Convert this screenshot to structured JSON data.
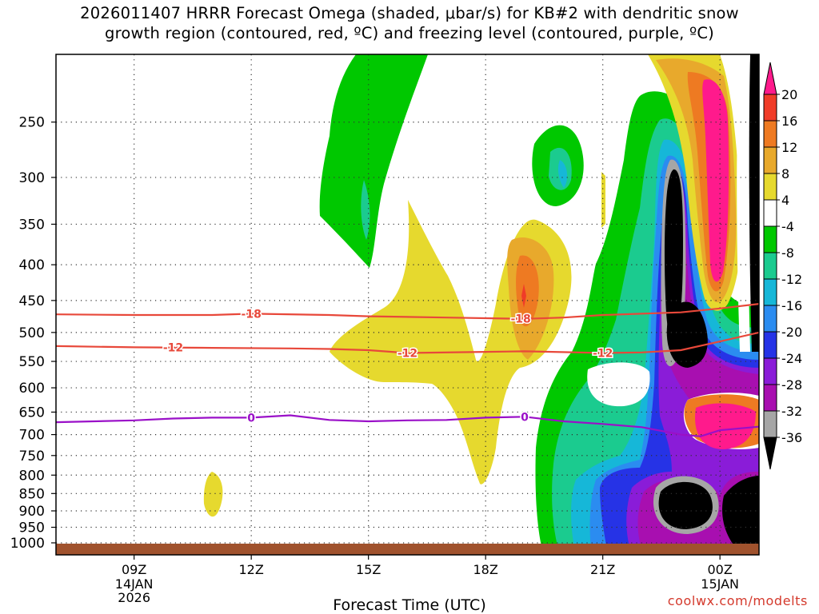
{
  "title_lines": [
    "2026011407 HRRR Forecast Omega (shaded, μbar/s) for KB#2 with dendritic snow",
    "growth region (contoured, red, ºC) and freezing level (contoured, purple, ºC)"
  ],
  "credit": "coolwx.com/modelts",
  "chart_data": {
    "type": "heatmap",
    "xlabel": "Forecast Time (UTC)",
    "x_ticks": [
      {
        "hour": 9,
        "label": "09Z",
        "sub": [
          "14JAN",
          "2026"
        ]
      },
      {
        "hour": 12,
        "label": "12Z",
        "sub": []
      },
      {
        "hour": 15,
        "label": "15Z",
        "sub": []
      },
      {
        "hour": 18,
        "label": "18Z",
        "sub": []
      },
      {
        "hour": 21,
        "label": "21Z",
        "sub": []
      },
      {
        "hour": 24,
        "label": "00Z",
        "sub": [
          "15JAN"
        ]
      }
    ],
    "xlim_hours": [
      7,
      25
    ],
    "y_levels_hpa": [
      250,
      300,
      350,
      400,
      450,
      500,
      550,
      600,
      650,
      700,
      750,
      800,
      850,
      900,
      950,
      1000
    ],
    "ylim_hpa": [
      200,
      1000
    ],
    "colorbar": {
      "labels": [
        "20",
        "16",
        "12",
        "8",
        "4",
        "-4",
        "-8",
        "-12",
        "-16",
        "-20",
        "-24",
        "-28",
        "-32",
        "-36"
      ],
      "colors": [
        "#ff1a8c",
        "#f03c28",
        "#ee7a22",
        "#e8a92c",
        "#e6d92e",
        "#ffffff",
        "#00c800",
        "#1bcb8f",
        "#16b7d8",
        "#2b8cf0",
        "#2633e6",
        "#8a1cd8",
        "#a80fb0",
        "#a6a6a6",
        "#000000"
      ]
    },
    "isotherms": [
      {
        "value": -18,
        "color": "#e8483a",
        "points": [
          [
            7,
            471
          ],
          [
            9,
            472
          ],
          [
            11,
            472
          ],
          [
            12,
            470
          ],
          [
            14,
            472
          ],
          [
            15,
            474
          ],
          [
            17,
            476
          ],
          [
            19,
            478
          ],
          [
            20,
            476
          ],
          [
            21,
            472
          ],
          [
            23,
            468
          ],
          [
            24,
            462
          ],
          [
            25,
            455
          ]
        ],
        "labels": [
          [
            12,
            "-18"
          ],
          [
            18.9,
            "-18"
          ]
        ]
      },
      {
        "value": -12,
        "color": "#e8483a",
        "points": [
          [
            7,
            523
          ],
          [
            9,
            525
          ],
          [
            11,
            526
          ],
          [
            13,
            527
          ],
          [
            14,
            528
          ],
          [
            15,
            530
          ],
          [
            16,
            535
          ],
          [
            18,
            533
          ],
          [
            19,
            532
          ],
          [
            21,
            535
          ],
          [
            22,
            534
          ],
          [
            23,
            530
          ],
          [
            24,
            515
          ],
          [
            25,
            500
          ]
        ],
        "labels": [
          [
            10,
            "-12"
          ],
          [
            16,
            "-12"
          ],
          [
            21,
            "-12"
          ]
        ]
      },
      {
        "value": 0,
        "color": "#9a10c8",
        "points": [
          [
            7,
            672
          ],
          [
            9,
            668
          ],
          [
            10,
            664
          ],
          [
            11,
            662
          ],
          [
            12,
            662
          ],
          [
            13,
            657
          ],
          [
            14,
            667
          ],
          [
            15,
            670
          ],
          [
            16,
            668
          ],
          [
            17,
            667
          ],
          [
            18,
            662
          ],
          [
            19,
            660
          ],
          [
            20,
            670
          ],
          [
            21,
            676
          ],
          [
            22,
            683
          ],
          [
            23,
            700
          ],
          [
            23.5,
            704
          ],
          [
            24,
            690
          ],
          [
            25,
            682
          ]
        ],
        "labels": [
          [
            12,
            "0"
          ],
          [
            19,
            "0"
          ]
        ]
      }
    ]
  }
}
